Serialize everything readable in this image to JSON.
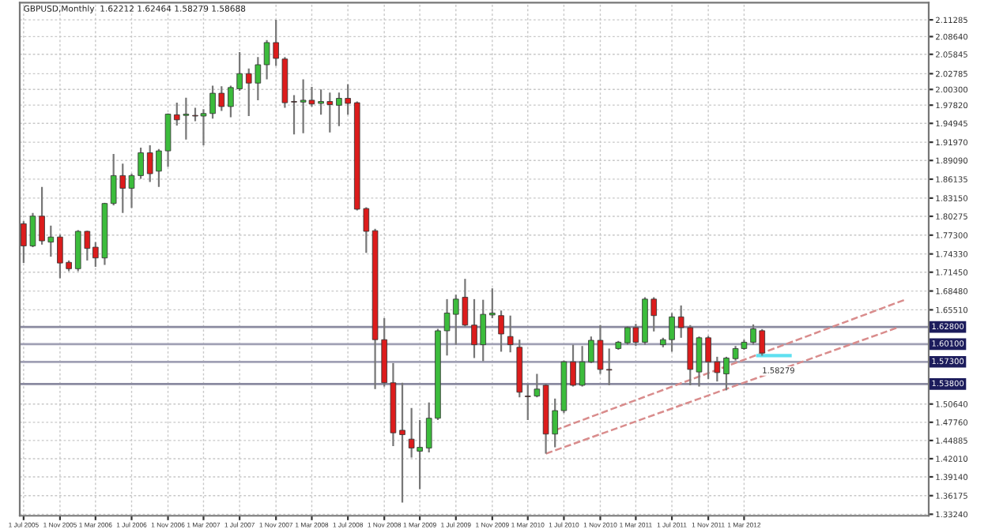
{
  "chart_data": {
    "type": "candlestick",
    "title": "GBPUSD,Monthly  1.62212 1.62464 1.58279 1.58688",
    "x": [
      "2005-07",
      "2005-08",
      "2005-09",
      "2005-10",
      "2005-11",
      "2005-12",
      "2006-01",
      "2006-02",
      "2006-03",
      "2006-04",
      "2006-05",
      "2006-06",
      "2006-07",
      "2006-08",
      "2006-09",
      "2006-10",
      "2006-11",
      "2006-12",
      "2007-01",
      "2007-02",
      "2007-03",
      "2007-04",
      "2007-05",
      "2007-06",
      "2007-07",
      "2007-08",
      "2007-09",
      "2007-10",
      "2007-11",
      "2007-12",
      "2008-01",
      "2008-02",
      "2008-03",
      "2008-04",
      "2008-05",
      "2008-06",
      "2008-07",
      "2008-08",
      "2008-09",
      "2008-10",
      "2008-11",
      "2008-12",
      "2009-01",
      "2009-02",
      "2009-03",
      "2009-04",
      "2009-05",
      "2009-06",
      "2009-07",
      "2009-08",
      "2009-09",
      "2009-10",
      "2009-11",
      "2009-12",
      "2010-01",
      "2010-02",
      "2010-03",
      "2010-04",
      "2010-05",
      "2010-06",
      "2010-07",
      "2010-08",
      "2010-09",
      "2010-10",
      "2010-11",
      "2010-12",
      "2011-01",
      "2011-02",
      "2011-03",
      "2011-04",
      "2011-05",
      "2011-06",
      "2011-07",
      "2011-08",
      "2011-09",
      "2011-10",
      "2011-11",
      "2011-12",
      "2012-01",
      "2012-02",
      "2012-03",
      "2012-04",
      "2012-05"
    ],
    "ohlc": [
      [
        1.791,
        1.795,
        1.729,
        1.756
      ],
      [
        1.756,
        1.808,
        1.754,
        1.803
      ],
      [
        1.803,
        1.849,
        1.758,
        1.764
      ],
      [
        1.762,
        1.788,
        1.739,
        1.77
      ],
      [
        1.77,
        1.774,
        1.705,
        1.729
      ],
      [
        1.73,
        1.733,
        1.716,
        1.72
      ],
      [
        1.72,
        1.781,
        1.716,
        1.779
      ],
      [
        1.779,
        1.78,
        1.733,
        1.752
      ],
      [
        1.754,
        1.762,
        1.723,
        1.737
      ],
      [
        1.737,
        1.824,
        1.726,
        1.823
      ],
      [
        1.823,
        1.901,
        1.82,
        1.867
      ],
      [
        1.867,
        1.886,
        1.808,
        1.847
      ],
      [
        1.847,
        1.87,
        1.816,
        1.867
      ],
      [
        1.867,
        1.911,
        1.862,
        1.903
      ],
      [
        1.903,
        1.915,
        1.857,
        1.87
      ],
      [
        1.874,
        1.909,
        1.849,
        1.906
      ],
      [
        1.906,
        1.965,
        1.881,
        1.964
      ],
      [
        1.963,
        1.982,
        1.946,
        1.955
      ],
      [
        1.962,
        1.99,
        1.924,
        1.964
      ],
      [
        1.962,
        1.974,
        1.953,
        1.961
      ],
      [
        1.961,
        1.972,
        1.915,
        1.965
      ],
      [
        1.965,
        2.009,
        1.957,
        1.997
      ],
      [
        1.997,
        2.008,
        1.969,
        1.976
      ],
      [
        1.976,
        2.009,
        1.959,
        2.006
      ],
      [
        2.004,
        2.062,
        2.001,
        2.028
      ],
      [
        2.028,
        2.036,
        1.961,
        2.013
      ],
      [
        2.013,
        2.054,
        1.986,
        2.042
      ],
      [
        2.042,
        2.081,
        2.019,
        2.077
      ],
      [
        2.077,
        2.113,
        2.04,
        2.052
      ],
      [
        2.051,
        2.054,
        1.974,
        1.982
      ],
      [
        1.984,
        1.994,
        1.932,
        1.983
      ],
      [
        1.983,
        2.019,
        1.934,
        1.986
      ],
      [
        1.986,
        2.007,
        1.976,
        1.98
      ],
      [
        1.981,
        2.003,
        1.963,
        1.984
      ],
      [
        1.984,
        1.998,
        1.935,
        1.979
      ],
      [
        1.978,
        1.998,
        1.945,
        1.989
      ],
      [
        1.989,
        2.011,
        1.963,
        1.981
      ],
      [
        1.982,
        1.984,
        1.812,
        1.814
      ],
      [
        1.815,
        1.817,
        1.745,
        1.779
      ],
      [
        1.78,
        1.783,
        1.53,
        1.608
      ],
      [
        1.608,
        1.642,
        1.534,
        1.54
      ],
      [
        1.54,
        1.571,
        1.44,
        1.461
      ],
      [
        1.465,
        1.54,
        1.351,
        1.458
      ],
      [
        1.451,
        1.5,
        1.422,
        1.437
      ],
      [
        1.432,
        1.481,
        1.372,
        1.438
      ],
      [
        1.437,
        1.509,
        1.43,
        1.484
      ],
      [
        1.484,
        1.625,
        1.481,
        1.622
      ],
      [
        1.622,
        1.672,
        1.583,
        1.65
      ],
      [
        1.648,
        1.679,
        1.6,
        1.672
      ],
      [
        1.675,
        1.704,
        1.629,
        1.631
      ],
      [
        1.631,
        1.672,
        1.579,
        1.6
      ],
      [
        1.6,
        1.671,
        1.574,
        1.648
      ],
      [
        1.647,
        1.689,
        1.642,
        1.65
      ],
      [
        1.646,
        1.654,
        1.589,
        1.617
      ],
      [
        1.613,
        1.646,
        1.588,
        1.6
      ],
      [
        1.596,
        1.608,
        1.517,
        1.525
      ],
      [
        1.519,
        1.538,
        1.481,
        1.518
      ],
      [
        1.519,
        1.554,
        1.517,
        1.53
      ],
      [
        1.536,
        1.538,
        1.428,
        1.459
      ],
      [
        1.459,
        1.515,
        1.438,
        1.496
      ],
      [
        1.496,
        1.575,
        1.492,
        1.573
      ],
      [
        1.573,
        1.6,
        1.534,
        1.536
      ],
      [
        1.536,
        1.598,
        1.534,
        1.573
      ],
      [
        1.573,
        1.613,
        1.571,
        1.607
      ],
      [
        1.607,
        1.631,
        1.554,
        1.561
      ],
      [
        1.561,
        1.594,
        1.536,
        1.56
      ],
      [
        1.594,
        1.606,
        1.592,
        1.604
      ],
      [
        1.603,
        1.629,
        1.6,
        1.627
      ],
      [
        1.627,
        1.633,
        1.598,
        1.604
      ],
      [
        1.604,
        1.675,
        1.6,
        1.672
      ],
      [
        1.672,
        1.675,
        1.621,
        1.646
      ],
      [
        1.6,
        1.611,
        1.596,
        1.608
      ],
      [
        1.608,
        1.65,
        1.589,
        1.644
      ],
      [
        1.644,
        1.662,
        1.611,
        1.627
      ],
      [
        1.627,
        1.631,
        1.536,
        1.561
      ],
      [
        1.557,
        1.613,
        1.534,
        1.611
      ],
      [
        1.611,
        1.614,
        1.546,
        1.573
      ],
      [
        1.573,
        1.581,
        1.542,
        1.556
      ],
      [
        1.554,
        1.581,
        1.528,
        1.579
      ],
      [
        1.578,
        1.598,
        1.575,
        1.594
      ],
      [
        1.594,
        1.608,
        1.592,
        1.604
      ],
      [
        1.604,
        1.632,
        1.6,
        1.625
      ],
      [
        1.62212,
        1.62464,
        1.58279,
        1.58688
      ]
    ],
    "colors": [
      "#dc1c1c",
      "#3cbc3c",
      "#dc1c1c",
      "#3cbc3c",
      "#dc1c1c",
      "#dc1c1c",
      "#3cbc3c",
      "#dc1c1c",
      "#dc1c1c",
      "#3cbc3c",
      "#3cbc3c",
      "#dc1c1c",
      "#3cbc3c",
      "#3cbc3c",
      "#dc1c1c",
      "#3cbc3c",
      "#3cbc3c",
      "#dc1c1c",
      "#3cbc3c",
      "#dc1c1c",
      "#3cbc3c",
      "#3cbc3c",
      "#dc1c1c",
      "#3cbc3c",
      "#3cbc3c",
      "#dc1c1c",
      "#3cbc3c",
      "#3cbc3c",
      "#dc1c1c",
      "#dc1c1c",
      "#dc1c1c",
      "#3cbc3c",
      "#dc1c1c",
      "#3cbc3c",
      "#dc1c1c",
      "#3cbc3c",
      "#dc1c1c",
      "#dc1c1c",
      "#dc1c1c",
      "#dc1c1c",
      "#dc1c1c",
      "#dc1c1c",
      "#dc1c1c",
      "#dc1c1c",
      "#3cbc3c",
      "#3cbc3c",
      "#3cbc3c",
      "#3cbc3c",
      "#3cbc3c",
      "#dc1c1c",
      "#dc1c1c",
      "#3cbc3c",
      "#3cbc3c",
      "#dc1c1c",
      "#dc1c1c",
      "#dc1c1c",
      "#dc1c1c",
      "#3cbc3c",
      "#dc1c1c",
      "#3cbc3c",
      "#3cbc3c",
      "#dc1c1c",
      "#3cbc3c",
      "#3cbc3c",
      "#dc1c1c",
      "#dc1c1c",
      "#3cbc3c",
      "#3cbc3c",
      "#dc1c1c",
      "#3cbc3c",
      "#dc1c1c",
      "#3cbc3c",
      "#3cbc3c",
      "#dc1c1c",
      "#dc1c1c",
      "#3cbc3c",
      "#dc1c1c",
      "#dc1c1c",
      "#3cbc3c",
      "#3cbc3c",
      "#3cbc3c",
      "#3cbc3c",
      "#dc1c1c"
    ],
    "series": [
      {
        "type": "line",
        "x": [
          "2010-05",
          "2013-08"
        ],
        "values": [
          1.428,
          1.627
        ],
        "color": "#d98c8c",
        "line_style": "dashed"
      },
      {
        "type": "line",
        "x": [
          "2010-06",
          "2013-09"
        ],
        "values": [
          1.465,
          1.672
        ],
        "color": "#d98c8c",
        "line_style": "dashed"
      }
    ],
    "ref_lines": [
      {
        "axis": "y",
        "value": 1.628,
        "label": "1.62800",
        "color": "#8a8aa0"
      },
      {
        "axis": "y",
        "value": 1.601,
        "label": "1.60100",
        "color": "#a0a0b4"
      },
      {
        "axis": "y",
        "value": 1.573,
        "label": "1.57300",
        "color": "#a0a0b4"
      },
      {
        "axis": "y",
        "value": 1.538,
        "label": "1.53800",
        "color": "#8a8aa0"
      }
    ],
    "annotations": [
      {
        "text": "1.58279",
        "x": "2012-05",
        "y": 1.58279
      }
    ],
    "xlim": [
      "2005-06-18",
      "2013-11-15"
    ],
    "xticks": [
      {
        "value": "2005-07-01",
        "label": "1 Jul 2005"
      },
      {
        "value": "2005-11-01",
        "label": "1 Nov 2005"
      },
      {
        "value": "2006-03-01",
        "label": "1 Mar 2006"
      },
      {
        "value": "2006-07-01",
        "label": "1 Jul 2006"
      },
      {
        "value": "2006-11-01",
        "label": "1 Nov 2006"
      },
      {
        "value": "2007-03-01",
        "label": "1 Mar 2007"
      },
      {
        "value": "2007-07-01",
        "label": "1 Jul 2007"
      },
      {
        "value": "2007-11-01",
        "label": "1 Nov 2007"
      },
      {
        "value": "2008-03-01",
        "label": "1 Mar 2008"
      },
      {
        "value": "2008-07-01",
        "label": "1 Jul 2008"
      },
      {
        "value": "2008-11-01",
        "label": "1 Nov 2008"
      },
      {
        "value": "2009-03-01",
        "label": "1 Mar 2009"
      },
      {
        "value": "2009-07-01",
        "label": "1 Jul 2009"
      },
      {
        "value": "2009-11-01",
        "label": "1 Nov 2009"
      },
      {
        "value": "2010-03-01",
        "label": "1 Mar 2010"
      },
      {
        "value": "2010-07-01",
        "label": "1 Jul 2010"
      },
      {
        "value": "2010-11-01",
        "label": "1 Nov 2010"
      },
      {
        "value": "2011-03-01",
        "label": "1 Mar 2011"
      },
      {
        "value": "2011-07-01",
        "label": "1 Jul 2011"
      },
      {
        "value": "2011-11-01",
        "label": "1 Nov 2011"
      },
      {
        "value": "2012-03-01",
        "label": "1 Mar 2012"
      }
    ],
    "ylim": [
      1.33,
      2.14
    ],
    "yticks": [
      {
        "value": 1.3324,
        "label": "1.33240"
      },
      {
        "value": 1.36175,
        "label": "1.36175"
      },
      {
        "value": 1.3914,
        "label": "1.39140"
      },
      {
        "value": 1.4201,
        "label": "1.42010"
      },
      {
        "value": 1.44885,
        "label": "1.44885"
      },
      {
        "value": 1.4776,
        "label": "1.47760"
      },
      {
        "value": 1.5064,
        "label": "1.50640"
      },
      {
        "value": 1.6551,
        "label": "1.65510"
      },
      {
        "value": 1.6848,
        "label": "1.68480"
      },
      {
        "value": 1.7145,
        "label": "1.71450"
      },
      {
        "value": 1.7433,
        "label": "1.74330"
      },
      {
        "value": 1.773,
        "label": "1.77300"
      },
      {
        "value": 1.80275,
        "label": "1.80275"
      },
      {
        "value": 1.8315,
        "label": "1.83150"
      },
      {
        "value": 1.86135,
        "label": "1.86135"
      },
      {
        "value": 1.8909,
        "label": "1.89090"
      },
      {
        "value": 1.9197,
        "label": "1.91970"
      },
      {
        "value": 1.94945,
        "label": "1.94945"
      },
      {
        "value": 1.9782,
        "label": "1.97820"
      },
      {
        "value": 2.003,
        "label": "2.00300"
      },
      {
        "value": 2.02785,
        "label": "2.02785"
      },
      {
        "value": 2.05845,
        "label": "2.05845"
      },
      {
        "value": 2.0864,
        "label": "2.08640"
      },
      {
        "value": 2.11285,
        "label": "2.11285"
      }
    ],
    "grid": true
  }
}
